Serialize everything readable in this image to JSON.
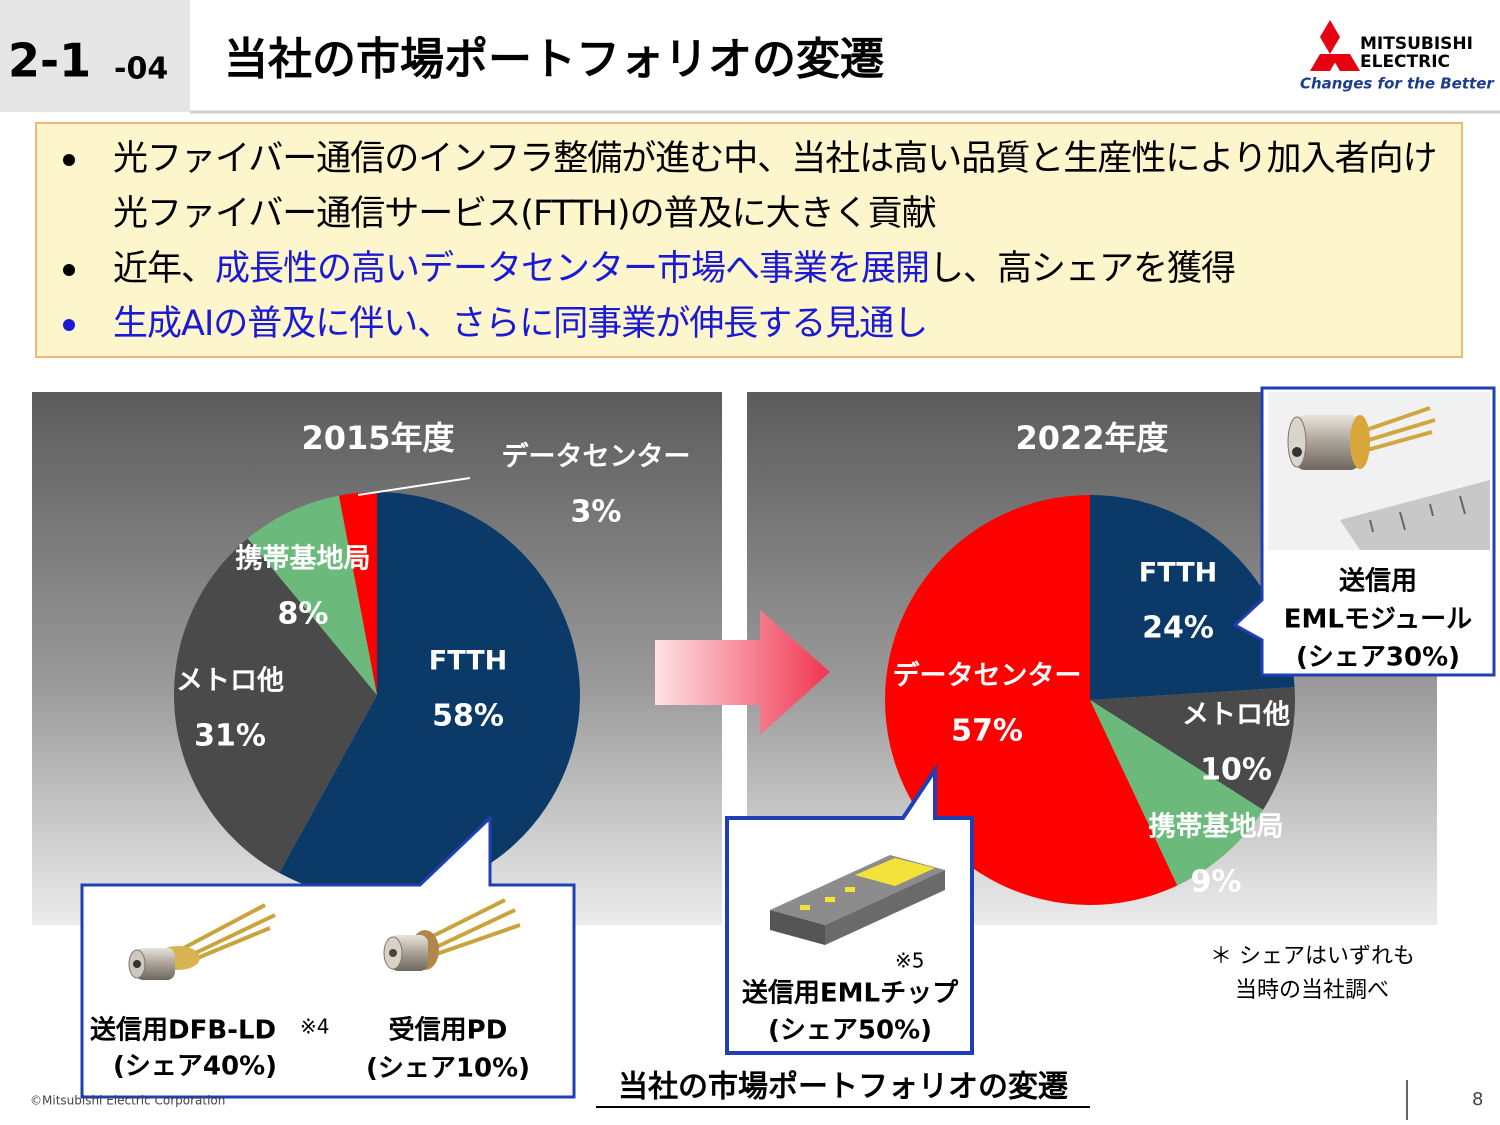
{
  "header": {
    "section": "2-1",
    "subsection": "-04",
    "title": "当社の市場ポートフォリオの変遷"
  },
  "logo": {
    "name_lines": [
      "MITSUBISHI",
      "ELECTRIC"
    ],
    "tagline": "Changes for the Better"
  },
  "bullets": [
    {
      "color": "#000000",
      "parts": [
        {
          "text": "光ファイバー通信のインフラ整備が進む中、当社は高い品質と生産性により加入者向け光ファイバー通信サービス(FTTH)の普及に大きく貢献",
          "color": "#000000"
        }
      ]
    },
    {
      "color": "#000000",
      "parts": [
        {
          "text": "近年、",
          "color": "#000000"
        },
        {
          "text": "成長性の高いデータセンター市場へ事業を展開",
          "color": "#1a1ad6"
        },
        {
          "text": "し、高シェアを獲得",
          "color": "#000000"
        }
      ]
    },
    {
      "color": "#1a1ad6",
      "parts": [
        {
          "text": "生成AIの普及に伴い、さらに同事業が伸長する見通し",
          "color": "#1a1ad6"
        }
      ]
    }
  ],
  "chart_data": [
    {
      "type": "pie",
      "title": "2015年度",
      "categories": [
        "FTTH",
        "メトロ他",
        "携帯基地局",
        "データセンター"
      ],
      "values": [
        58,
        31,
        8,
        3
      ],
      "value_labels": [
        "58%",
        "31%",
        "8%",
        "3%"
      ],
      "colors": [
        "#0b3a68",
        "#4a4a4a",
        "#6cb97c",
        "#ff0000"
      ]
    },
    {
      "type": "pie",
      "title": "2022年度",
      "categories": [
        "FTTH",
        "メトロ他",
        "携帯基地局",
        "データセンター"
      ],
      "values": [
        24,
        10,
        9,
        57
      ],
      "value_labels": [
        "24%",
        "10%",
        "9%",
        "57%"
      ],
      "colors": [
        "#0b3a68",
        "#4a4a4a",
        "#6cb97c",
        "#ff0000"
      ]
    }
  ],
  "component_callout": {
    "items": [
      {
        "name": "送信用DFB-LD",
        "note": "※4",
        "share": "(シェア40%)"
      },
      {
        "name": "受信用PD",
        "share": "(シェア10%)"
      }
    ]
  },
  "chip_callout": {
    "note": "※5",
    "name": "送信用EMLチップ",
    "share": "(シェア50%)"
  },
  "module_callout": {
    "lines": [
      "送信用",
      "EMLモジュール",
      "(シェア30%)"
    ]
  },
  "note": [
    "＊ シェアはいずれも",
    "当時の当社調べ"
  ],
  "caption": "当社の市場ポートフォリオの変遷",
  "footer": {
    "copyright": "©Mitsubishi Electric Corporation",
    "page": "8"
  }
}
